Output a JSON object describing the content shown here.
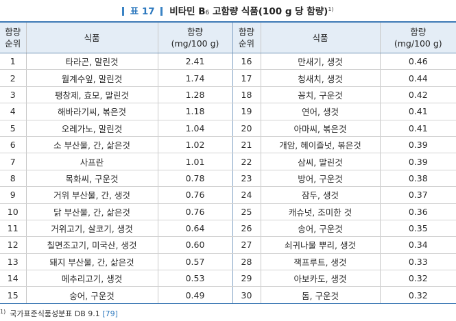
{
  "caption": {
    "label": "표 17",
    "title_main": "비타민 B",
    "title_sub": "6",
    "title_rest": " 고함량 식품(100 g 당 함량)",
    "note_mark": "1)"
  },
  "headers": {
    "rank_line1": "함량",
    "rank_line2": "순위",
    "food": "식품",
    "amount_line1": "함량",
    "amount_line2": "(mg/100 g)"
  },
  "rows": [
    {
      "rank_left": "1",
      "food_left": "타라곤, 말린것",
      "amount_left": "2.41",
      "rank_right": "16",
      "food_right": "만새기, 생것",
      "amount_right": "0.46"
    },
    {
      "rank_left": "2",
      "food_left": "월계수잎, 말린것",
      "amount_left": "1.74",
      "rank_right": "17",
      "food_right": "청새치, 생것",
      "amount_right": "0.44"
    },
    {
      "rank_left": "3",
      "food_left": "팽창제, 효모, 말린것",
      "amount_left": "1.28",
      "rank_right": "18",
      "food_right": "꽁치, 구운것",
      "amount_right": "0.42"
    },
    {
      "rank_left": "4",
      "food_left": "해바라기씨, 볶은것",
      "amount_left": "1.18",
      "rank_right": "19",
      "food_right": "연어, 생것",
      "amount_right": "0.41"
    },
    {
      "rank_left": "5",
      "food_left": "오레가노, 말린것",
      "amount_left": "1.04",
      "rank_right": "20",
      "food_right": "아마씨, 볶은것",
      "amount_right": "0.41"
    },
    {
      "rank_left": "6",
      "food_left": "소 부산물, 간, 삶은것",
      "amount_left": "1.02",
      "rank_right": "21",
      "food_right": "개암, 헤이즐넛, 볶은것",
      "amount_right": "0.39"
    },
    {
      "rank_left": "7",
      "food_left": "사프란",
      "amount_left": "1.01",
      "rank_right": "22",
      "food_right": "삼씨, 말린것",
      "amount_right": "0.39"
    },
    {
      "rank_left": "8",
      "food_left": "목화씨, 구운것",
      "amount_left": "0.78",
      "rank_right": "23",
      "food_right": "방어, 구운것",
      "amount_right": "0.38"
    },
    {
      "rank_left": "9",
      "food_left": "거위 부산물, 간, 생것",
      "amount_left": "0.76",
      "rank_right": "24",
      "food_right": "잠두, 생것",
      "amount_right": "0.37"
    },
    {
      "rank_left": "10",
      "food_left": "닭 부산물, 간, 삶은것",
      "amount_left": "0.76",
      "rank_right": "25",
      "food_right": "캐슈넛, 조미한 것",
      "amount_right": "0.36"
    },
    {
      "rank_left": "11",
      "food_left": "거위고기, 살코기, 생것",
      "amount_left": "0.64",
      "rank_right": "26",
      "food_right": "송어, 구운것",
      "amount_right": "0.35"
    },
    {
      "rank_left": "12",
      "food_left": "칠면조고기, 미국산, 생것",
      "amount_left": "0.60",
      "rank_right": "27",
      "food_right": "쇠귀나물 뿌리, 생것",
      "amount_right": "0.34"
    },
    {
      "rank_left": "13",
      "food_left": "돼지 부산물, 간, 삶은것",
      "amount_left": "0.57",
      "rank_right": "28",
      "food_right": "잭프루트, 생것",
      "amount_right": "0.33"
    },
    {
      "rank_left": "14",
      "food_left": "메추리고기, 생것",
      "amount_left": "0.53",
      "rank_right": "29",
      "food_right": "아보카도, 생것",
      "amount_right": "0.32"
    },
    {
      "rank_left": "15",
      "food_left": "숭어, 구운것",
      "amount_left": "0.49",
      "rank_right": "30",
      "food_right": "돔, 구운것",
      "amount_right": "0.32"
    }
  ],
  "footnote": {
    "mark": "1)",
    "text": "국가표준식품성분표 DB 9.1 ",
    "ref": "[79]"
  },
  "colors": {
    "accent": "#2c78be",
    "header_bg": "#e4edf6",
    "rule": "#3c78b4"
  }
}
